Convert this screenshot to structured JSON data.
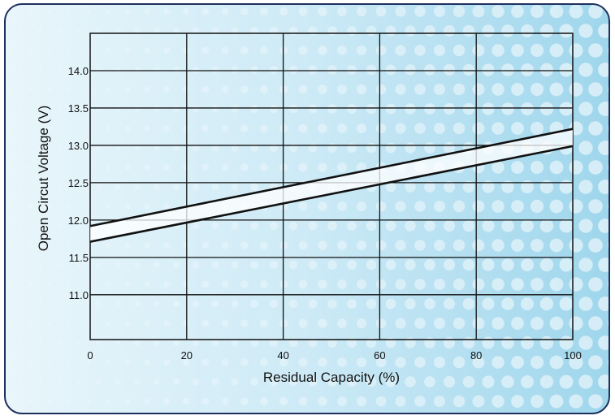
{
  "chart_data": {
    "type": "line",
    "title": "",
    "xlabel": "Residual Capacity (%)",
    "ylabel": "Open Circut  Voltage (V)",
    "xlim": [
      0,
      100
    ],
    "ylim": [
      10.4,
      14.5
    ],
    "x_ticks": [
      0,
      20,
      40,
      60,
      80,
      100
    ],
    "x_tick_labels": [
      "0",
      "20",
      "40",
      "60",
      "80",
      "100"
    ],
    "y_ticks": [
      11.0,
      11.5,
      12.0,
      12.5,
      13.0,
      13.5,
      14.0
    ],
    "y_tick_labels": [
      "11.0",
      "11.5",
      "12.0",
      "12.5",
      "13.0",
      "13.5",
      "14.0"
    ],
    "grid": true,
    "legend": "none",
    "series": [
      {
        "x": [
          0,
          100
        ],
        "values": [
          11.92,
          13.22
        ]
      },
      {
        "x": [
          0,
          100
        ],
        "values": [
          11.71,
          12.99
        ]
      }
    ]
  },
  "colors": {
    "frame_border": "#1f2f5e",
    "background_light": "#e9f6fb",
    "background_dark": "#9fd6ec",
    "dots": "#ffffff",
    "lines": "#111111"
  }
}
